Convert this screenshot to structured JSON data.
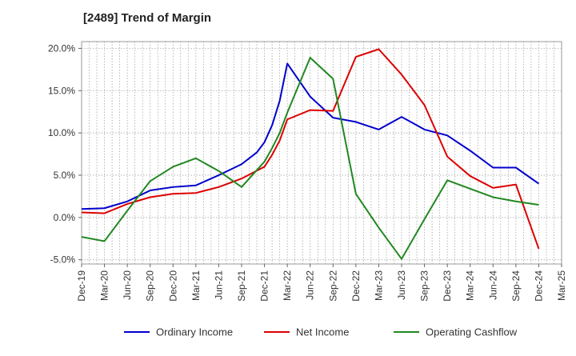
{
  "chart_data": {
    "type": "line",
    "title": "[2489]  Trend of Margin",
    "xlabel": "",
    "ylabel": "",
    "x_ticks": [
      "Dec-19",
      "Mar-20",
      "Jun-20",
      "Sep-20",
      "Dec-20",
      "Mar-21",
      "Jun-21",
      "Sep-21",
      "Dec-21",
      "Mar-22",
      "Jun-22",
      "Sep-22",
      "Dec-22",
      "Mar-23",
      "Jun-23",
      "Sep-23",
      "Dec-23",
      "Mar-24",
      "Jun-24",
      "Sep-24",
      "Dec-24",
      "Mar-25"
    ],
    "y_ticks": [
      "20.0%",
      "15.0%",
      "10.0%",
      "5.0%",
      "0.0%",
      "-5.0%"
    ],
    "y_tick_values": [
      20,
      15,
      10,
      5,
      0,
      -5
    ],
    "ylim": [
      -5.5,
      20.8
    ],
    "grid": true,
    "legend_position": "bottom",
    "series": [
      {
        "name": "Ordinary Income",
        "color": "#0000cc",
        "points": [
          [
            "Dec-19",
            1.0
          ],
          [
            "Mar-20",
            1.1
          ],
          [
            "Jun-20",
            1.9
          ],
          [
            "Sep-20",
            3.2
          ],
          [
            "Dec-20",
            3.6
          ],
          [
            "Mar-21",
            3.8
          ],
          [
            "Jun-21",
            5.0
          ],
          [
            "Sep-21",
            6.3
          ],
          [
            "Nov-21",
            7.7
          ],
          [
            "Dec-21",
            8.9
          ],
          [
            "Jan-22",
            10.9
          ],
          [
            "Feb-22",
            13.8
          ],
          [
            "Mar-22",
            18.2
          ],
          [
            "Jun-22",
            14.3
          ],
          [
            "Sep-22",
            11.8
          ],
          [
            "Dec-22",
            11.3
          ],
          [
            "Mar-23",
            10.4
          ],
          [
            "Jun-23",
            11.9
          ],
          [
            "Sep-23",
            10.4
          ],
          [
            "Dec-23",
            9.7
          ],
          [
            "Mar-24",
            7.9
          ],
          [
            "Jun-24",
            5.9
          ],
          [
            "Sep-24",
            5.9
          ],
          [
            "Dec-24",
            4.0
          ]
        ]
      },
      {
        "name": "Net Income",
        "color": "#dd0000",
        "points": [
          [
            "Dec-19",
            0.6
          ],
          [
            "Mar-20",
            0.5
          ],
          [
            "Jun-20",
            1.6
          ],
          [
            "Sep-20",
            2.4
          ],
          [
            "Dec-20",
            2.8
          ],
          [
            "Mar-21",
            2.9
          ],
          [
            "Jun-21",
            3.6
          ],
          [
            "Sep-21",
            4.6
          ],
          [
            "Dec-21",
            6.0
          ],
          [
            "Jan-22",
            7.4
          ],
          [
            "Feb-22",
            9.1
          ],
          [
            "Mar-22",
            11.6
          ],
          [
            "Jun-22",
            12.7
          ],
          [
            "Sep-22",
            12.6
          ],
          [
            "Dec-22",
            19.0
          ],
          [
            "Mar-23",
            19.9
          ],
          [
            "Jun-23",
            16.9
          ],
          [
            "Sep-23",
            13.3
          ],
          [
            "Dec-23",
            7.2
          ],
          [
            "Mar-24",
            4.9
          ],
          [
            "Jun-24",
            3.5
          ],
          [
            "Sep-24",
            3.9
          ],
          [
            "Dec-24",
            -3.7
          ]
        ]
      },
      {
        "name": "Operating Cashflow",
        "color": "#228822",
        "points": [
          [
            "Dec-19",
            -2.3
          ],
          [
            "Mar-20",
            -2.8
          ],
          [
            "Jun-20",
            0.8
          ],
          [
            "Sep-20",
            4.3
          ],
          [
            "Dec-20",
            6.0
          ],
          [
            "Mar-21",
            7.0
          ],
          [
            "Jun-21",
            5.5
          ],
          [
            "Sep-21",
            3.6
          ],
          [
            "Dec-21",
            6.6
          ],
          [
            "Jan-22",
            8.2
          ],
          [
            "Feb-22",
            10.0
          ],
          [
            "Mar-22",
            12.4
          ],
          [
            "Jun-22",
            18.9
          ],
          [
            "Sep-22",
            16.4
          ],
          [
            "Dec-22",
            2.8
          ],
          [
            "Mar-23",
            -1.2
          ],
          [
            "Jun-23",
            -4.9
          ],
          [
            "Sep-23",
            -0.2
          ],
          [
            "Dec-23",
            4.4
          ],
          [
            "Mar-24",
            3.4
          ],
          [
            "Jun-24",
            2.4
          ],
          [
            "Sep-24",
            1.9
          ],
          [
            "Dec-24",
            1.5
          ]
        ]
      }
    ]
  }
}
